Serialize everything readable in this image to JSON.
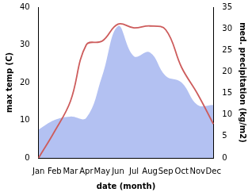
{
  "chart_data": {
    "type": "line",
    "categories": [
      "Jan",
      "Feb",
      "Mar",
      "Apr",
      "May",
      "Jun",
      "Jul",
      "Aug",
      "Sep",
      "Oct",
      "Nov",
      "Dec"
    ],
    "x_label": "date (month)",
    "y_label": "max temp (C)",
    "y2_label": "med. precipitation (kg/m2)",
    "ylim": [
      0,
      40
    ],
    "yticks": [
      0,
      10,
      20,
      30,
      40
    ],
    "y2lim": [
      0,
      35
    ],
    "y2ticks": [
      0,
      5,
      10,
      15,
      20,
      25,
      30,
      35
    ],
    "grid": false,
    "series": [
      {
        "name": "max temp",
        "type": "line",
        "color": "#cd5c5c",
        "values": [
          0,
          7,
          15,
          30,
          31,
          35.5,
          34.5,
          35,
          34,
          24,
          17,
          9
        ]
      },
      {
        "name": "med. precipitation",
        "type": "area",
        "axis": "y2",
        "color": "#b3c1f2",
        "values": [
          6.6,
          8.8,
          9.6,
          9.3,
          19,
          30.6,
          23.6,
          24.5,
          19,
          17.5,
          12.3,
          12.3
        ]
      }
    ]
  }
}
